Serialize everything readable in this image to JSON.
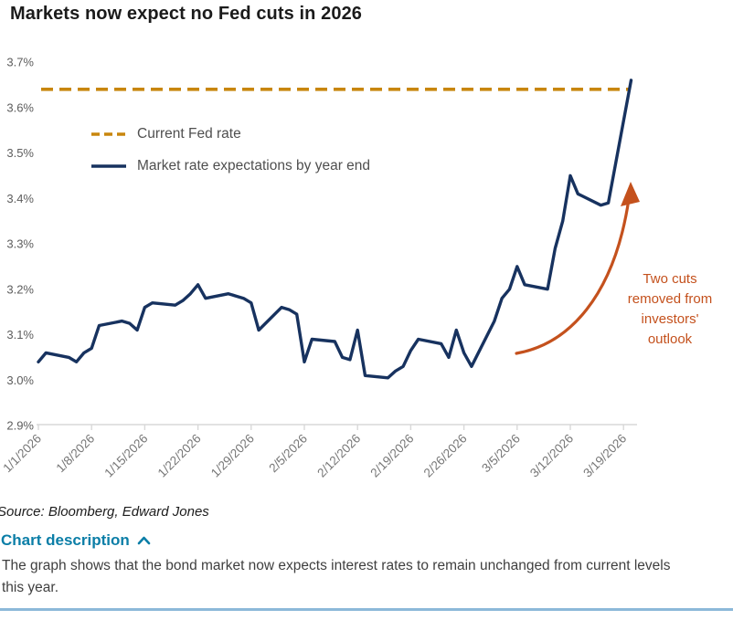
{
  "title": "Markets now expect no Fed cuts in 2026",
  "source": "Source: Bloomberg, Edward Jones",
  "chart_description": {
    "label": "Chart description",
    "state": "expanded",
    "caret_icon": "chevron-up",
    "body": "The graph shows that the bond market now expects interest rates to remain unchanged from current levels this year."
  },
  "colors": {
    "fed_rate_dash": "#c8860d",
    "market_line": "#17325f",
    "annotation_orange": "#c4511d",
    "link_blue": "#0b7ea7",
    "divider_blue": "#8cb9d9",
    "axis_gray": "#d8d8d8",
    "tick_label_gray": "#767676"
  },
  "chart_data": {
    "type": "line",
    "title": "Markets now expect no Fed cuts in 2026",
    "xlabel": "",
    "ylabel": "",
    "ylim": [
      2.9,
      3.7
    ],
    "grid": false,
    "legend_position": "top-left-inside",
    "y_ticks": [
      "3.7%",
      "3.6%",
      "3.5%",
      "3.4%",
      "3.3%",
      "3.2%",
      "3.1%",
      "3.0%",
      "2.9%"
    ],
    "x_ticks": [
      "1/1/2026",
      "1/8/2026",
      "1/15/2026",
      "1/22/2026",
      "1/29/2026",
      "2/5/2026",
      "2/12/2026",
      "2/19/2026",
      "2/26/2026",
      "3/5/2026",
      "3/12/2026",
      "3/19/2026"
    ],
    "series": [
      {
        "name": "Current Fed rate",
        "style": "dashed-reference-line",
        "value": 3.64,
        "color": "#c8860d"
      },
      {
        "name": "Market rate expectations by year end",
        "style": "solid",
        "color": "#17325f",
        "points": [
          [
            "1/1/2026",
            3.04
          ],
          [
            "1/2/2026",
            3.06
          ],
          [
            "1/5/2026",
            3.05
          ],
          [
            "1/6/2026",
            3.04
          ],
          [
            "1/7/2026",
            3.06
          ],
          [
            "1/8/2026",
            3.07
          ],
          [
            "1/9/2026",
            3.12
          ],
          [
            "1/12/2026",
            3.13
          ],
          [
            "1/13/2026",
            3.125
          ],
          [
            "1/14/2026",
            3.11
          ],
          [
            "1/15/2026",
            3.16
          ],
          [
            "1/16/2026",
            3.17
          ],
          [
            "1/19/2026",
            3.165
          ],
          [
            "1/20/2026",
            3.175
          ],
          [
            "1/21/2026",
            3.19
          ],
          [
            "1/22/2026",
            3.21
          ],
          [
            "1/23/2026",
            3.18
          ],
          [
            "1/26/2026",
            3.19
          ],
          [
            "1/27/2026",
            3.185
          ],
          [
            "1/28/2026",
            3.18
          ],
          [
            "1/29/2026",
            3.17
          ],
          [
            "1/30/2026",
            3.11
          ],
          [
            "2/2/2026",
            3.16
          ],
          [
            "2/3/2026",
            3.155
          ],
          [
            "2/4/2026",
            3.145
          ],
          [
            "2/5/2026",
            3.04
          ],
          [
            "2/6/2026",
            3.09
          ],
          [
            "2/9/2026",
            3.085
          ],
          [
            "2/10/2026",
            3.05
          ],
          [
            "2/11/2026",
            3.045
          ],
          [
            "2/12/2026",
            3.11
          ],
          [
            "2/13/2026",
            3.01
          ],
          [
            "2/16/2026",
            3.005
          ],
          [
            "2/17/2026",
            3.02
          ],
          [
            "2/18/2026",
            3.03
          ],
          [
            "2/19/2026",
            3.065
          ],
          [
            "2/20/2026",
            3.09
          ],
          [
            "2/23/2026",
            3.08
          ],
          [
            "2/24/2026",
            3.05
          ],
          [
            "2/25/2026",
            3.11
          ],
          [
            "2/26/2026",
            3.06
          ],
          [
            "2/27/2026",
            3.03
          ],
          [
            "3/2/2026",
            3.13
          ],
          [
            "3/3/2026",
            3.18
          ],
          [
            "3/4/2026",
            3.2
          ],
          [
            "3/5/2026",
            3.25
          ],
          [
            "3/6/2026",
            3.21
          ],
          [
            "3/9/2026",
            3.2
          ],
          [
            "3/10/2026",
            3.29
          ],
          [
            "3/11/2026",
            3.35
          ],
          [
            "3/12/2026",
            3.45
          ],
          [
            "3/13/2026",
            3.41
          ],
          [
            "3/16/2026",
            3.385
          ],
          [
            "3/17/2026",
            3.39
          ],
          [
            "3/18/2026",
            3.48
          ],
          [
            "3/19/2026",
            3.57
          ],
          [
            "3/20/2026",
            3.66
          ]
        ]
      }
    ],
    "annotation": {
      "text": "Two cuts removed from investors' outlook",
      "lines": [
        "Two cuts",
        "removed from",
        "investors'",
        "outlook"
      ],
      "color": "#c4511d",
      "arrow": "curved-up-arrow"
    }
  }
}
